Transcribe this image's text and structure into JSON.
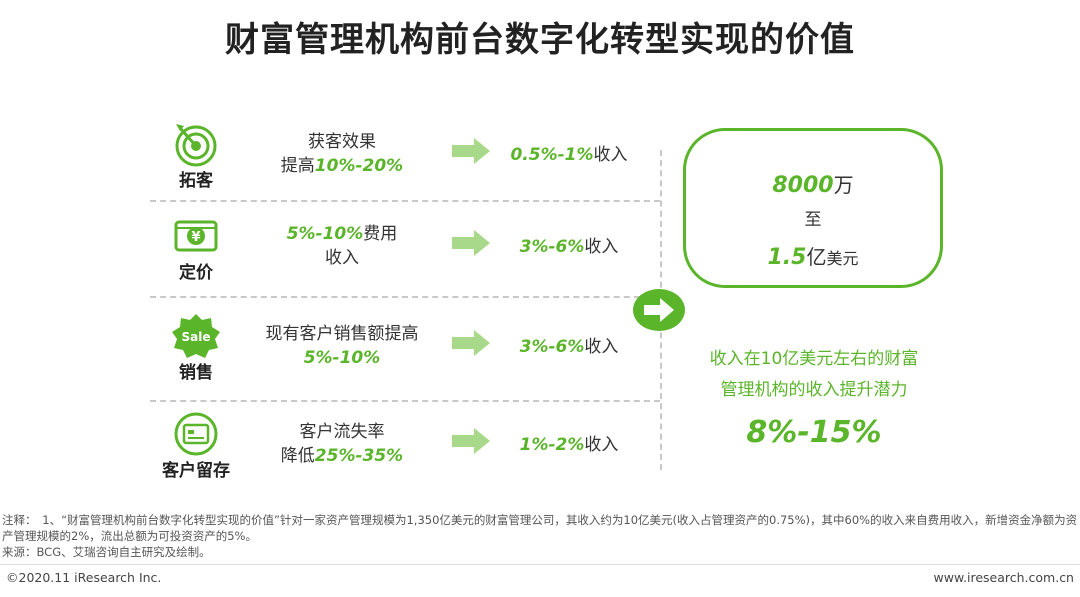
{
  "title": "财富管理机构前台数字化转型实现的价值",
  "rows": [
    {
      "category": "拓客",
      "icon": "target-icon",
      "effect_pre": "获客效果",
      "effect_line2_pre": "提高",
      "effect_highlight": "10%-20%",
      "effect_post": "",
      "result_value": "0.5%-1%",
      "result_suffix": "收入"
    },
    {
      "category": "定价",
      "icon": "yuan-sign-icon",
      "effect_highlight": "5%-10%",
      "effect_post": "费用",
      "effect_line2": "收入",
      "result_value": "3%-6%",
      "result_suffix": "收入"
    },
    {
      "category": "销售",
      "icon": "sale-badge-icon",
      "effect_pre": "现有客户销售额提高",
      "effect_highlight": "5%-10%",
      "result_value": "3%-6%",
      "result_suffix": "收入"
    },
    {
      "category": "客户留存",
      "icon": "card-icon",
      "effect_pre": "客户流失率",
      "effect_line2_pre": "降低",
      "effect_highlight": "25%-35%",
      "result_value": "1%-2%",
      "result_suffix": "收入"
    }
  ],
  "summary_box": {
    "value1": "8000",
    "unit1": "万",
    "connector": "至",
    "value2": "1.5",
    "unit2a": "亿",
    "unit2b": "美元"
  },
  "potential": {
    "line1": "收入在10亿美元左右的财富",
    "line2": "管理机构的收入提升潜力",
    "value": "8%-15%"
  },
  "notes": {
    "note": "注释：　1、“财富管理机构前台数字化转型实现的价值”针对一家资产管理规模为1,350亿美元的财富管理公司，其收入约为10亿美元(收入占管理资产的0.75%)，其中60%的收入来自费用收入，新增资金净额为资产管理规模的2%，流出总额为可投资资产的5%。",
    "source": "来源：BCG、艾瑞咨询自主研究及绘制。"
  },
  "footer": {
    "copyright": "©2020.11 iResearch Inc.",
    "website": "www.iresearch.com.cn"
  },
  "colors": {
    "accent": "#5bb52a",
    "accent_light": "#a8d98a"
  }
}
